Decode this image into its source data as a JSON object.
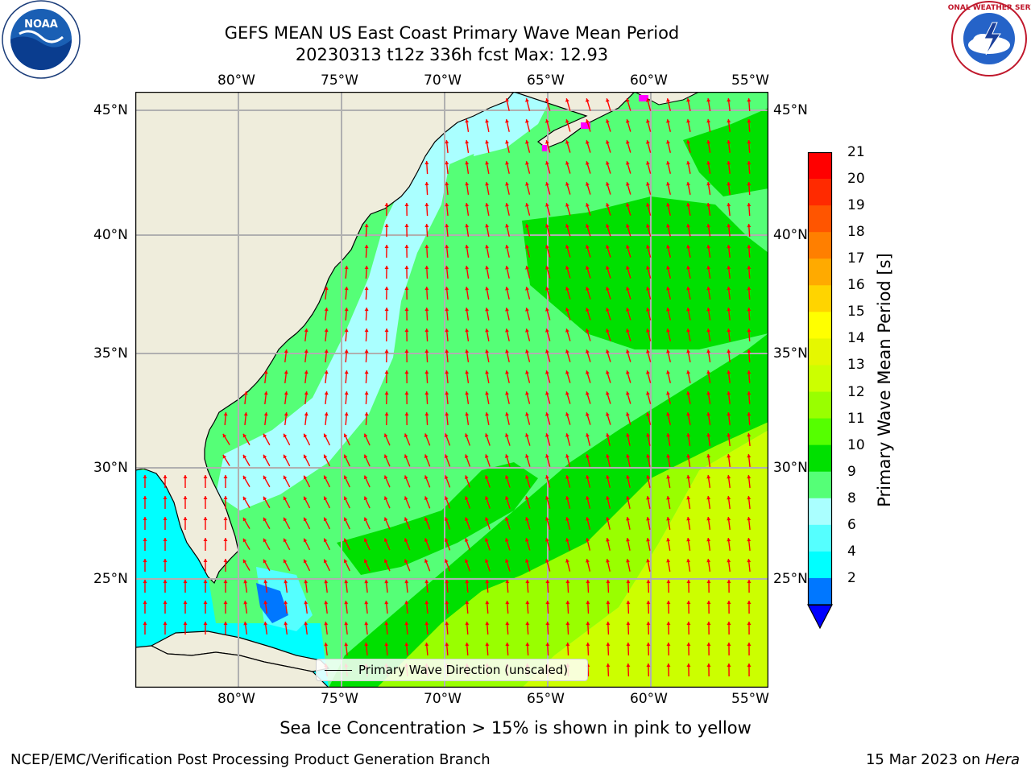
{
  "header": {
    "title_line1": "GEFS MEAN US East Coast Primary Wave Mean Period",
    "title_line2": "20230313 t12z 336h fcst   Max: 12.93"
  },
  "logos": {
    "left": {
      "icon": "noaa-logo",
      "text": "NOAA"
    },
    "right": {
      "icon": "national-weather-service-logo",
      "text": "NATIONAL WEATHER SERVICE"
    }
  },
  "map": {
    "lon_labels": [
      "80°W",
      "75°W",
      "70°W",
      "65°W",
      "60°W",
      "55°W"
    ],
    "lat_labels": [
      "45°N",
      "40°N",
      "35°N",
      "30°N",
      "25°N"
    ],
    "legend_label": "Primary Wave Direction (unscaled)",
    "vector_color": "#ff0000",
    "land_color": "#efeddc"
  },
  "colorbar": {
    "label": "Primary Wave Mean Period [s]",
    "ticks": [
      "21",
      "20",
      "19",
      "18",
      "17",
      "16",
      "15",
      "14",
      "13",
      "12",
      "11",
      "10",
      "9",
      "8",
      "6",
      "4",
      "2"
    ],
    "colors": [
      "#ff0000",
      "#ff2a00",
      "#ff5500",
      "#ff7f00",
      "#ffaa00",
      "#ffd400",
      "#ffff00",
      "#e5f700",
      "#ccff00",
      "#99ff00",
      "#55ff00",
      "#00e000",
      "#55ff77",
      "#aaffff",
      "#55ffff",
      "#00ffff",
      "#0077ff"
    ],
    "extend_color": "#0000ff"
  },
  "footer": {
    "note": "Sea Ice Concentration > 15% is shown in pink to yellow",
    "left": "NCEP/EMC/Verification Post Processing Product Generation Branch",
    "date": "15 Mar 2023 on ",
    "machine": "Hera"
  }
}
